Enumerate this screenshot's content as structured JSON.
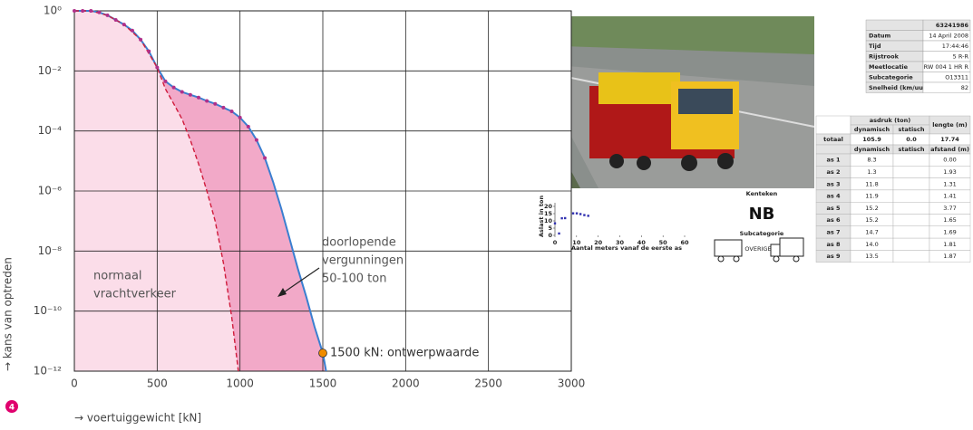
{
  "chart_data": [
    {
      "type": "area-line-log",
      "xlim": [
        0,
        3000
      ],
      "xticks": [
        0,
        500,
        1000,
        1500,
        2000,
        2500,
        3000
      ],
      "ylim": [
        1e-12,
        1
      ],
      "ylog": true,
      "grid": true,
      "yticks": [
        {
          "value": 1,
          "label": "10⁰"
        },
        {
          "value": 0.01,
          "label": "10⁻²"
        },
        {
          "value": 0.0001,
          "label": "10⁻⁴"
        },
        {
          "value": 1e-06,
          "label": "10⁻⁶"
        },
        {
          "value": 1e-08,
          "label": "10⁻⁸"
        },
        {
          "value": 1e-10,
          "label": "10⁻¹⁰"
        },
        {
          "value": 1e-12,
          "label": "10⁻¹²"
        }
      ],
      "xlabel": "→ voertuiggewicht [kN]",
      "ylabel": "→ kans van optreden",
      "series": [
        {
          "style": "solid",
          "color": "#3a7fd0",
          "fill": "#f2a9c8",
          "x": [
            0,
            50,
            100,
            150,
            200,
            250,
            300,
            350,
            400,
            450,
            500,
            550,
            600,
            650,
            700,
            750,
            800,
            850,
            900,
            950,
            1000,
            1050,
            1100,
            1150,
            1200,
            1250,
            1300,
            1350,
            1400,
            1450,
            1500,
            1520
          ],
          "values": [
            1,
            1,
            1,
            0.89,
            0.71,
            0.5,
            0.35,
            0.22,
            0.11,
            0.045,
            0.013,
            0.0045,
            0.0028,
            0.002,
            0.0016,
            0.0013,
            0.001,
            0.0008,
            0.0006,
            0.00045,
            0.00028,
            0.00014,
            5e-05,
            1.26e-05,
            2e-06,
            2.5e-07,
            2.5e-08,
            2.5e-09,
            3e-10,
            3e-11,
            4e-12,
            1e-12
          ]
        },
        {
          "style": "dashed",
          "color": "#d01c3c",
          "fill": "#fbdde9",
          "x": [
            0,
            100,
            200,
            300,
            400,
            500,
            550,
            600,
            650,
            700,
            750,
            800,
            850,
            900,
            950,
            990
          ],
          "values": [
            1,
            1,
            0.71,
            0.35,
            0.11,
            0.013,
            0.0025,
            0.0008,
            0.00025,
            5e-05,
            8e-06,
            1e-06,
            1e-07,
            4e-09,
            6.3e-11,
            1e-12
          ]
        },
        {
          "style": "dots",
          "color": "#b0308a",
          "x": [
            0,
            50,
            100,
            150,
            200,
            250,
            300,
            350,
            400,
            450,
            500,
            550,
            600,
            650,
            700,
            750,
            800,
            850,
            900,
            950,
            1000,
            1050,
            1100,
            1150
          ],
          "values": [
            1,
            1,
            1,
            0.89,
            0.71,
            0.5,
            0.35,
            0.22,
            0.11,
            0.045,
            0.013,
            0.0045,
            0.0028,
            0.002,
            0.0016,
            0.0013,
            0.001,
            0.0008,
            0.0006,
            0.00045,
            0.00028,
            0.00014,
            5e-05,
            1.26e-05
          ]
        }
      ],
      "point": {
        "x": 1500,
        "y": 4e-12,
        "label": "1500 kN: ontwerpwaarde",
        "color": "#f08c00"
      },
      "annotations": [
        {
          "lines": [
            "normaal",
            "vrachtverkeer"
          ]
        },
        {
          "lines": [
            "doorlopende",
            "vergunningen",
            "50-100 ton"
          ]
        }
      ]
    },
    {
      "type": "scatter",
      "color": "#3030b0",
      "xlabel": "Aantal meters vanaf de eerste as",
      "ylabel": "Aslast in ton",
      "xlim": [
        0,
        60
      ],
      "xticks": [
        0,
        10,
        20,
        30,
        40,
        50,
        60
      ],
      "ylim": [
        0,
        20
      ],
      "yticks": [
        0,
        5,
        10,
        15,
        20
      ],
      "x": [
        0,
        1.9,
        3.2,
        4.7,
        8.4,
        10.1,
        11.8,
        13.6,
        15.4
      ],
      "values": [
        8.3,
        1.3,
        11.8,
        11.9,
        15.2,
        15.2,
        14.7,
        14.0,
        13.5
      ]
    }
  ],
  "figure_number": "4",
  "info_table": {
    "rows": [
      [
        "",
        "63241986"
      ],
      [
        "Datum",
        "14 April 2008"
      ],
      [
        "Tijd",
        "17:44:46"
      ],
      [
        "Rijstrook",
        "5 R-R"
      ],
      [
        "Meetlocatie",
        "RW 004 1 HR R"
      ],
      [
        "Subcategorie",
        "O13311"
      ],
      [
        "Snelheid (km/uur)",
        "82"
      ]
    ]
  },
  "axle_table": {
    "header": [
      "asdruk (ton)",
      "lengte (m)"
    ],
    "subheader": [
      "dynamisch",
      "statisch"
    ],
    "total": [
      "totaal",
      "105.9",
      "0.0",
      "17.74"
    ],
    "subheader2": [
      "dynamisch",
      "statisch",
      "afstand (m)"
    ],
    "rows": [
      [
        "as 1",
        "8.3",
        "0.00"
      ],
      [
        "as 2",
        "1.3",
        "1.93"
      ],
      [
        "as 3",
        "11.8",
        "1.31"
      ],
      [
        "as 4",
        "11.9",
        "1.41"
      ],
      [
        "as 5",
        "15.2",
        "3.77"
      ],
      [
        "as 6",
        "15.2",
        "1.65"
      ],
      [
        "as 7",
        "14.7",
        "1.69"
      ],
      [
        "as 8",
        "14.0",
        "1.81"
      ],
      [
        "as 9",
        "13.5",
        "1.87"
      ]
    ]
  },
  "plate": {
    "title": "Kenteken",
    "value": "NB",
    "category_title": "Subcategorie",
    "category": "OVERIGE"
  }
}
